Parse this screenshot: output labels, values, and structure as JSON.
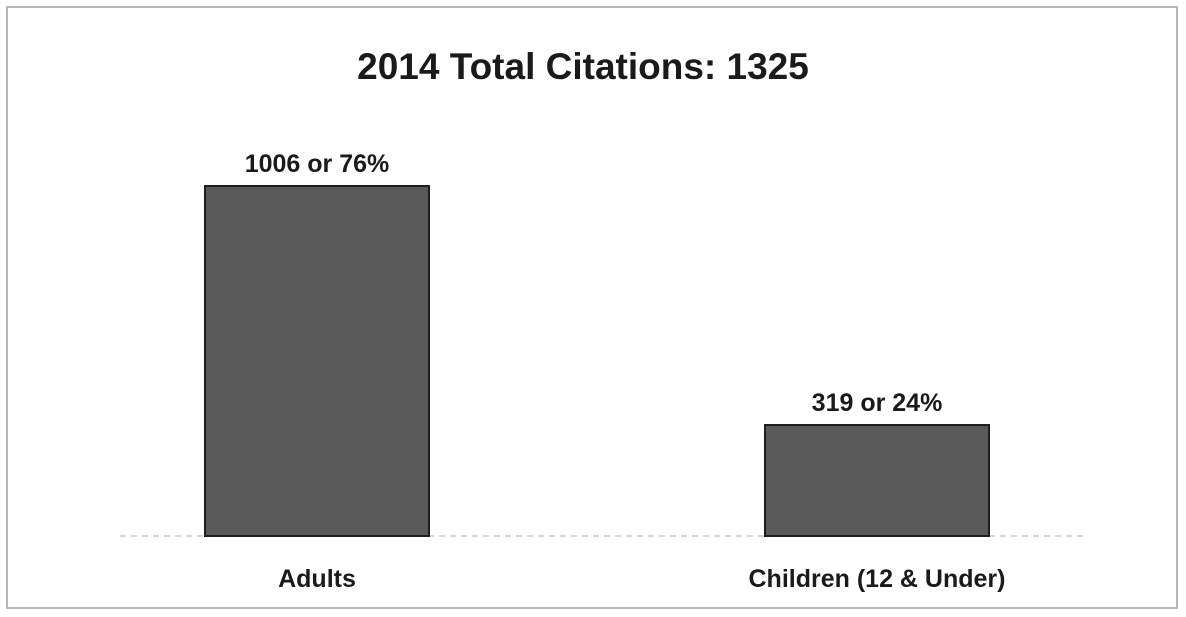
{
  "chart_data": {
    "type": "bar",
    "title": "2014 Total Citations: 1325",
    "categories": [
      "Adults",
      "Children (12 & Under)"
    ],
    "values": [
      1006,
      319
    ],
    "data_labels": [
      "1006 or 76%",
      "319 or 24%"
    ],
    "xlabel": "",
    "ylabel": "",
    "ylim": [
      0,
      1006
    ],
    "grid": false,
    "legend": "none",
    "bar_color": "#5a5a5a"
  }
}
